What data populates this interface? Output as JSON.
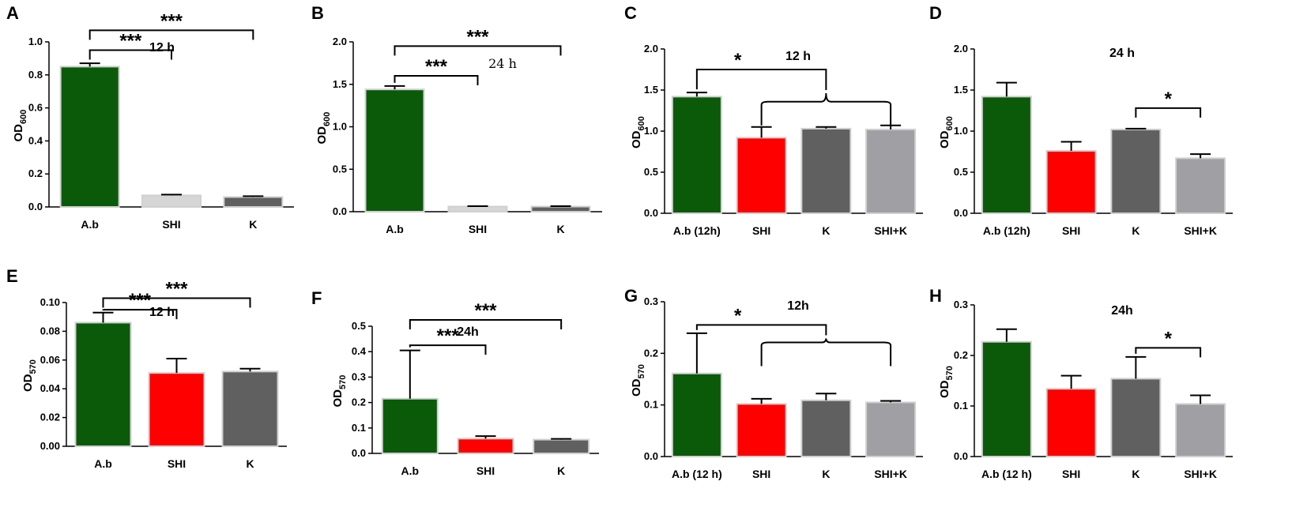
{
  "colors": {
    "ab": "#0a5a0a",
    "shi": "#ff0000",
    "k": "#606060",
    "shik": "#a0a0a4",
    "light": "#d6d6d6",
    "bar_outline": "#d0d0d0"
  },
  "chart_data": [
    {
      "panel": "A",
      "type": "bar",
      "title": "12 h",
      "ylabel_main": "OD",
      "ylabel_sub": "600",
      "categories": [
        "A.b",
        "SHI",
        "K"
      ],
      "values": [
        0.85,
        0.07,
        0.06
      ],
      "errors": [
        0.02,
        0.005,
        0.005
      ],
      "bar_colors": [
        "ab",
        "light",
        "k"
      ],
      "ylim": [
        0,
        1.0
      ],
      "yticks": [
        "0.0",
        "0.2",
        "0.4",
        "0.6",
        "0.8",
        "1.0"
      ],
      "significance": [
        {
          "from": 0,
          "to": 1,
          "label": "***",
          "level": 0.95
        },
        {
          "from": 0,
          "to": 2,
          "label": "***",
          "level": 1.07
        }
      ]
    },
    {
      "panel": "B",
      "type": "bar",
      "title": "24 h",
      "ylabel_main": "OD",
      "ylabel_sub": "600",
      "categories": [
        "A.b",
        "SHI",
        "K"
      ],
      "values": [
        1.44,
        0.06,
        0.06
      ],
      "errors": [
        0.04,
        0.005,
        0.005
      ],
      "bar_colors": [
        "ab",
        "light",
        "k"
      ],
      "ylim": [
        0,
        2.0
      ],
      "yticks": [
        "0.0",
        "0.5",
        "1.0",
        "1.5",
        "2.0"
      ],
      "significance": [
        {
          "from": 0,
          "to": 1,
          "label": "***",
          "level": 1.6
        },
        {
          "from": 0,
          "to": 2,
          "label": "***",
          "level": 1.95
        }
      ]
    },
    {
      "panel": "C",
      "type": "bar",
      "title": "12 h",
      "ylabel_main": "OD",
      "ylabel_sub": "600",
      "categories": [
        "A.b (12h)",
        "SHI",
        "K",
        "SHI+K"
      ],
      "values": [
        1.42,
        0.92,
        1.03,
        1.02
      ],
      "errors": [
        0.05,
        0.13,
        0.02,
        0.05
      ],
      "bar_colors": [
        "ab",
        "shi",
        "k",
        "shik"
      ],
      "ylim": [
        0,
        2.0
      ],
      "yticks": [
        "0.0",
        "0.5",
        "1.0",
        "1.5",
        "2.0"
      ],
      "significance": [
        {
          "from": 0,
          "to": 2,
          "label": "*",
          "level": 1.75,
          "drop_to": 1.5,
          "group_from": 1,
          "group_to": 3,
          "group_level": 1.32
        }
      ]
    },
    {
      "panel": "D",
      "type": "bar",
      "title": "24 h",
      "ylabel_main": "OD",
      "ylabel_sub": "600",
      "categories": [
        "A.b (12h)",
        "SHI",
        "K",
        "SHI+K"
      ],
      "values": [
        1.42,
        0.76,
        1.02,
        0.67
      ],
      "errors": [
        0.17,
        0.11,
        0.01,
        0.05
      ],
      "bar_colors": [
        "ab",
        "shi",
        "k",
        "shik"
      ],
      "ylim": [
        0,
        2.0
      ],
      "yticks": [
        "0.0",
        "0.5",
        "1.0",
        "1.5",
        "2.0"
      ],
      "significance": [
        {
          "from": 2,
          "to": 3,
          "label": "*",
          "level": 1.28
        }
      ]
    },
    {
      "panel": "E",
      "type": "bar",
      "title": "12 h",
      "ylabel_main": "OD",
      "ylabel_sub": "570",
      "categories": [
        "A.b",
        "SHI",
        "K"
      ],
      "values": [
        0.086,
        0.051,
        0.052
      ],
      "errors": [
        0.007,
        0.01,
        0.002
      ],
      "bar_colors": [
        "ab",
        "shi",
        "k"
      ],
      "ylim": [
        0,
        0.1
      ],
      "yticks": [
        "0.00",
        "0.02",
        "0.04",
        "0.06",
        "0.08",
        "0.10"
      ],
      "significance": [
        {
          "from": 0,
          "to": 1,
          "label": "***",
          "level": 0.095
        },
        {
          "from": 0,
          "to": 2,
          "label": "***",
          "level": 0.103
        }
      ]
    },
    {
      "panel": "F",
      "type": "bar",
      "title": "24h",
      "ylabel_main": "OD",
      "ylabel_sub": "570",
      "categories": [
        "A.b",
        "SHI",
        "K"
      ],
      "values": [
        0.215,
        0.058,
        0.054
      ],
      "errors": [
        0.19,
        0.01,
        0.003
      ],
      "bar_colors": [
        "ab",
        "shi",
        "k"
      ],
      "ylim": [
        0,
        0.5
      ],
      "yticks": [
        "0.0",
        "0.1",
        "0.2",
        "0.3",
        "0.4",
        "0.5"
      ],
      "significance": [
        {
          "from": 0,
          "to": 1,
          "label": "***",
          "level": 0.425
        },
        {
          "from": 0,
          "to": 2,
          "label": "***",
          "level": 0.525
        }
      ]
    },
    {
      "panel": "G",
      "type": "bar",
      "title": "12h",
      "ylabel_main": "OD",
      "ylabel_sub": "570",
      "categories": [
        "A.b (12 h)",
        "SHI",
        "K",
        "SHI+K"
      ],
      "values": [
        0.161,
        0.102,
        0.109,
        0.105
      ],
      "errors": [
        0.078,
        0.01,
        0.013,
        0.003
      ],
      "bar_colors": [
        "ab",
        "shi",
        "k",
        "shik"
      ],
      "ylim": [
        0,
        0.3
      ],
      "yticks": [
        "0.0",
        "0.1",
        "0.2",
        "0.3"
      ],
      "significance": [
        {
          "from": 0,
          "to": 2,
          "label": "*",
          "level": 0.255,
          "drop_to": 0.235,
          "group_from": 1,
          "group_to": 3,
          "group_level": 0.215
        }
      ]
    },
    {
      "panel": "H",
      "type": "bar",
      "title": "24h",
      "ylabel_main": "OD",
      "ylabel_sub": "570",
      "categories": [
        "A.b (12 h)",
        "SHI",
        "K",
        "SHI+K"
      ],
      "values": [
        0.227,
        0.134,
        0.154,
        0.104
      ],
      "errors": [
        0.025,
        0.026,
        0.043,
        0.017
      ],
      "bar_colors": [
        "ab",
        "shi",
        "k",
        "shik"
      ],
      "ylim": [
        0,
        0.3
      ],
      "yticks": [
        "0.0",
        "0.1",
        "0.2",
        "0.3"
      ],
      "significance": [
        {
          "from": 2,
          "to": 3,
          "label": "*",
          "level": 0.215
        }
      ]
    }
  ]
}
